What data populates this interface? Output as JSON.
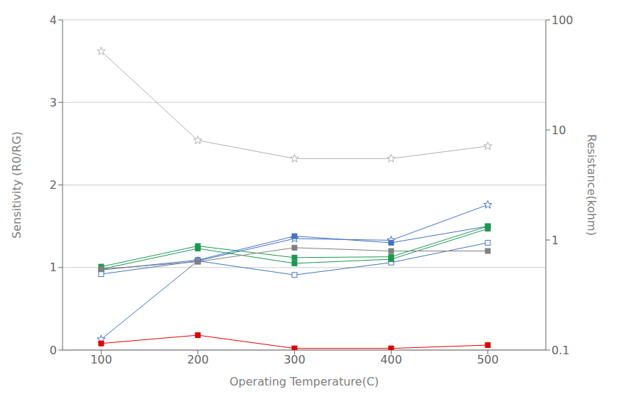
{
  "chart_data": {
    "type": "line",
    "x": [
      100,
      200,
      300,
      400,
      500
    ],
    "series": [
      {
        "color": "#b0b0b0",
        "values": [
          3.62,
          2.54,
          2.32,
          2.32,
          2.47
        ],
        "marker": "star_open",
        "line_style": "solid"
      },
      {
        "color": "#4472c4",
        "values": [
          0.13,
          1.08,
          1.35,
          1.33,
          1.76
        ],
        "marker": "star_open",
        "line_style": "solid"
      },
      {
        "color": "#4472c4",
        "values": [
          0.97,
          1.09,
          1.38,
          1.3,
          1.5
        ],
        "marker": "square",
        "line_style": "solid"
      },
      {
        "color": "#4472c4",
        "values": [
          0.92,
          1.08,
          0.91,
          1.06,
          1.3
        ],
        "marker": "square_open",
        "line_style": "solid"
      },
      {
        "color": "#1a9850",
        "values": [
          1.01,
          1.26,
          1.12,
          1.13,
          1.5
        ],
        "marker": "square",
        "line_style": "solid"
      },
      {
        "color": "#1a9850",
        "values": [
          0.98,
          1.23,
          1.05,
          1.1,
          1.47
        ],
        "marker": "square",
        "line_style": "solid"
      },
      {
        "color": "#808080",
        "values": [
          0.98,
          1.07,
          1.24,
          1.2,
          1.2
        ],
        "marker": "square",
        "line_style": "solid"
      },
      {
        "color": "#e00000",
        "values": [
          0.08,
          0.18,
          0.02,
          0.02,
          0.06
        ],
        "marker": "square",
        "line_style": "solid"
      }
    ],
    "xlabel": "Operating Temperature(C)",
    "ylabel": "Sensitivity (R0/RG)",
    "y2label": "Resistance(kohm)",
    "xlim": [
      60,
      560
    ],
    "xticks": [
      100,
      200,
      300,
      400,
      500
    ],
    "ylim": [
      0,
      4
    ],
    "yticks": [
      0,
      1,
      2,
      3,
      4
    ],
    "y2lim": [
      0.1,
      100
    ],
    "y2ticks": [
      0.1,
      1,
      10,
      100
    ],
    "log": "y2",
    "grid": true
  }
}
